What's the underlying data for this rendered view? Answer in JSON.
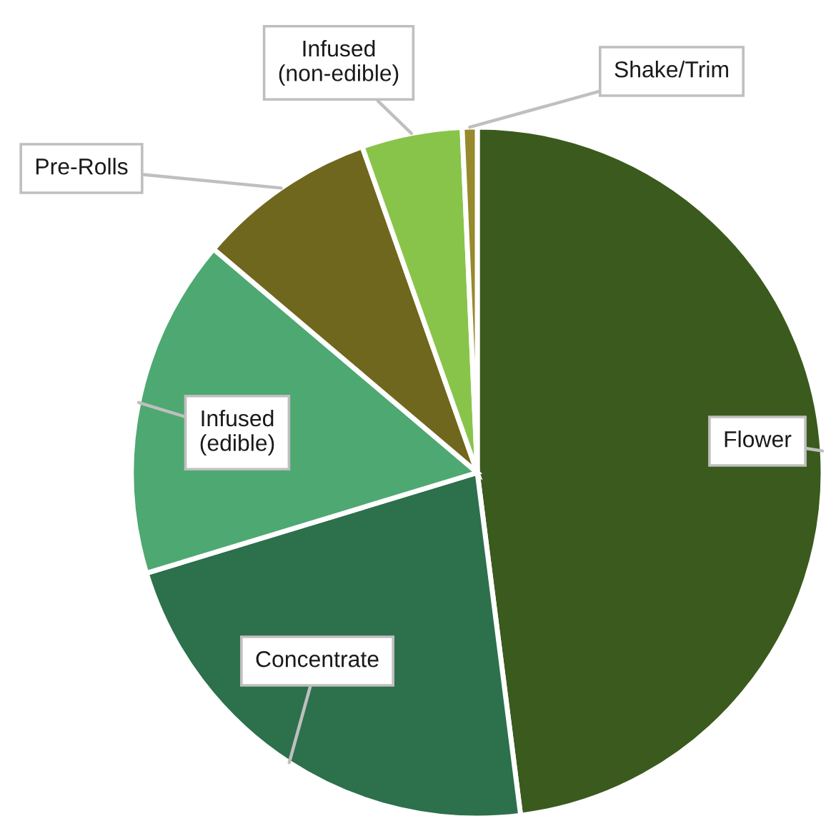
{
  "chart_data": {
    "type": "pie",
    "categories": [
      "Flower",
      "Concentrate",
      "Infused\n(edible)",
      "Pre-Rolls",
      "Infused\n(non-edible)",
      "Shake/Trim"
    ],
    "values": [
      48.0,
      22.3,
      15.9,
      8.4,
      4.7,
      0.7
    ],
    "colors": [
      "#3b5a1d",
      "#2c704c",
      "#4ea872",
      "#6f671d",
      "#88c44a",
      "#968a2c"
    ]
  }
}
